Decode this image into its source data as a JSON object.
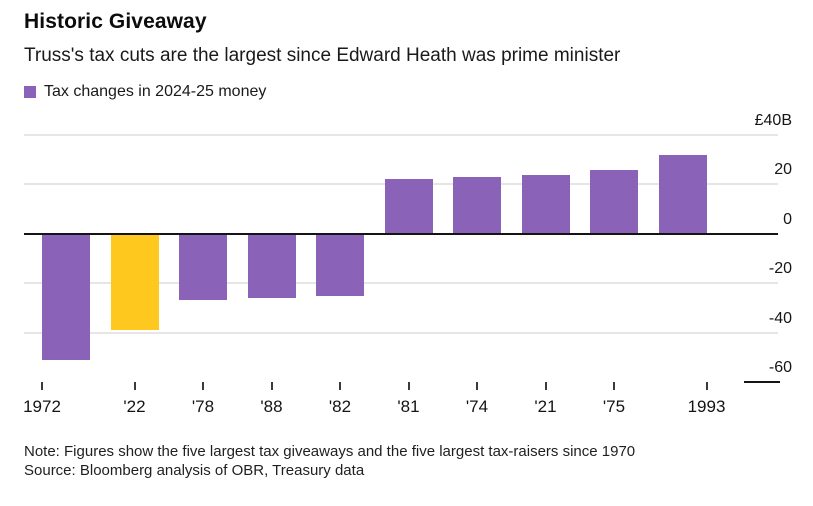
{
  "header": {
    "title": "Historic Giveaway",
    "subtitle": "Truss's tax cuts are the largest since Edward Heath was prime minister"
  },
  "legend": {
    "label": "Tax changes in 2024-25 money"
  },
  "chart_data": {
    "type": "bar",
    "title": "Historic Giveaway",
    "subtitle": "Truss's tax cuts are the largest since Edward Heath was prime minister",
    "legend": "Tax changes in 2024-25 money",
    "legend_position": "top-left",
    "unit": "GBP billions",
    "categories": [
      "1972",
      "'22",
      "'78",
      "'88",
      "'82",
      "'81",
      "'74",
      "'21",
      "'75",
      "1993"
    ],
    "values": [
      -51,
      -39,
      -27,
      -26,
      -25,
      22,
      23,
      24,
      26,
      32
    ],
    "highlight_index": 1,
    "bar_color": "#8a63b8",
    "highlight_color": "#ffc81e",
    "ylim": [
      -60,
      40
    ],
    "yticks": [
      40,
      20,
      0,
      -20,
      -40,
      -60
    ],
    "y_tick_labels": [
      "£40B",
      "20",
      "0",
      "-20",
      "-40",
      "-60"
    ],
    "grid": "horizontal",
    "axis_label_side": "right"
  },
  "footer": {
    "note": "Note: Figures show the five largest tax giveaways and the five largest tax-raisers since 1970",
    "source": "Source: Bloomberg analysis of OBR, Treasury data"
  }
}
